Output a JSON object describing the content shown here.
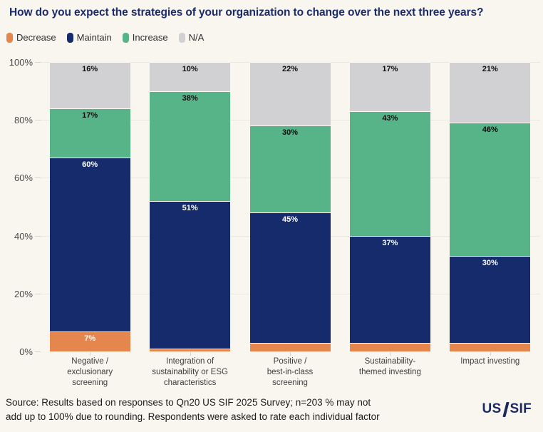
{
  "page": {
    "background": "#F9F6EF"
  },
  "chart_data": {
    "type": "bar",
    "stacked": true,
    "title": "How do you expect the strategies of your organization to change over the next three years?",
    "title_color": "#1B2B6B",
    "categories": [
      [
        "Negative /",
        "exclusionary",
        "screening"
      ],
      [
        "Integration of",
        "sustainability or ESG",
        "characteristics"
      ],
      [
        "Positive /",
        "best-in-class",
        "screening"
      ],
      [
        "Sustainability-",
        "themed investing"
      ],
      [
        "Impact investing"
      ]
    ],
    "series": [
      {
        "name": "Decrease",
        "color": "#E5864E",
        "label_color": "#FFFFFF",
        "values": [
          7,
          1,
          3,
          3,
          3
        ],
        "labels": [
          "7%",
          "",
          "",
          "",
          ""
        ]
      },
      {
        "name": "Maintain",
        "color": "#152B6B",
        "label_color": "#FFFFFF",
        "values": [
          60,
          51,
          45,
          37,
          30
        ],
        "labels": [
          "60%",
          "51%",
          "45%",
          "37%",
          "30%"
        ]
      },
      {
        "name": "Increase",
        "color": "#57B489",
        "label_color": "#0E0E0E",
        "values": [
          17,
          38,
          30,
          43,
          46
        ],
        "labels": [
          "17%",
          "38%",
          "30%",
          "43%",
          "46%"
        ]
      },
      {
        "name": "N/A",
        "color": "#D1D1D3",
        "label_color": "#0E0E0E",
        "values": [
          16,
          10,
          22,
          17,
          21
        ],
        "labels": [
          "16%",
          "10%",
          "22%",
          "17%",
          "21%"
        ]
      }
    ],
    "ylim": [
      0,
      100
    ],
    "yticks": [
      "0%",
      "20%",
      "40%",
      "60%",
      "80%",
      "100%"
    ],
    "ytick_step": 20,
    "grid": "horizontal",
    "legend_position": "top-left"
  },
  "footer": {
    "source_line1": "Source: Results based on responses to Qn20 US SIF 2025 Survey; n=203 % may not",
    "source_line2": "add up to 100% due to rounding. Respondents were asked to rate each individual factor",
    "logo_us": "US",
    "logo_sif": "SIF"
  }
}
